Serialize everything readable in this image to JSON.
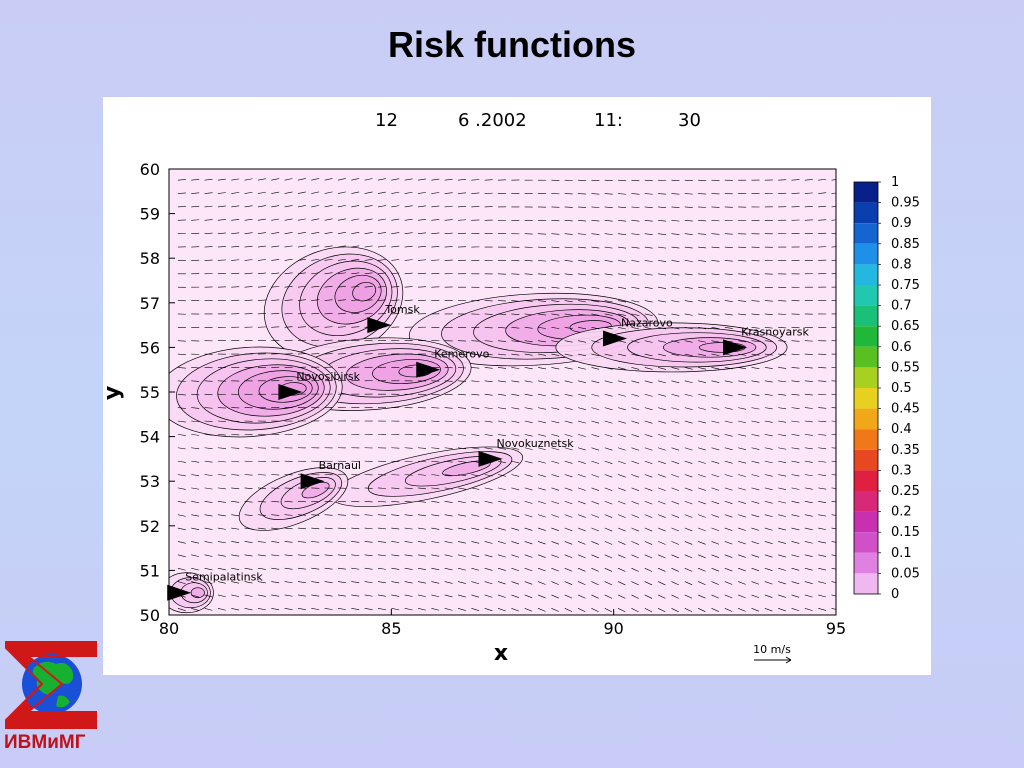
{
  "slide": {
    "title": "Risk functions"
  },
  "logo": {
    "text": "ИВМиМГ"
  },
  "chart_data": {
    "type": "heatmap",
    "header": {
      "day": "12",
      "date": "6 .2002",
      "hour": "11:",
      "minute": "30"
    },
    "xlabel": "x",
    "ylabel": "y",
    "xlim": [
      80,
      95
    ],
    "ylim": [
      50,
      60
    ],
    "x_ticks": [
      80,
      85,
      90,
      95
    ],
    "y_ticks": [
      50,
      51,
      52,
      53,
      54,
      55,
      56,
      57,
      58,
      59,
      60
    ],
    "colorbar": {
      "labels": [
        "1",
        "0.95",
        "0.9",
        "0.85",
        "0.8",
        "0.75",
        "0.7",
        "0.65",
        "0.6",
        "0.55",
        "0.5",
        "0.45",
        "0.4",
        "0.35",
        "0.3",
        "0.25",
        "0.2",
        "0.15",
        "0.1",
        "0.05",
        "0"
      ],
      "colors": [
        "#08208a",
        "#0a3fb0",
        "#1565d0",
        "#1e90e8",
        "#22b8e0",
        "#20c8b0",
        "#18c078",
        "#20b838",
        "#58c020",
        "#a8d020",
        "#e8d020",
        "#f0a818",
        "#f07818",
        "#e84820",
        "#e02040",
        "#d82878",
        "#c830b0",
        "#d050c8",
        "#e080e0",
        "#f0b8f0",
        "#ffffff"
      ]
    },
    "cities": [
      {
        "name": "Tomsk",
        "x": 85.0,
        "y": 56.5
      },
      {
        "name": "Nazarovo",
        "x": 90.3,
        "y": 56.2
      },
      {
        "name": "Krasnoyarsk",
        "x": 93.0,
        "y": 56.0
      },
      {
        "name": "Kemerovo",
        "x": 86.1,
        "y": 55.5
      },
      {
        "name": "Novosibirsk",
        "x": 83.0,
        "y": 55.0
      },
      {
        "name": "Novokuznetsk",
        "x": 87.5,
        "y": 53.5
      },
      {
        "name": "Barnaul",
        "x": 83.5,
        "y": 53.0
      },
      {
        "name": "Semipalatinsk",
        "x": 80.5,
        "y": 50.5
      }
    ],
    "wind_reference": {
      "label": "10 m/s"
    }
  }
}
